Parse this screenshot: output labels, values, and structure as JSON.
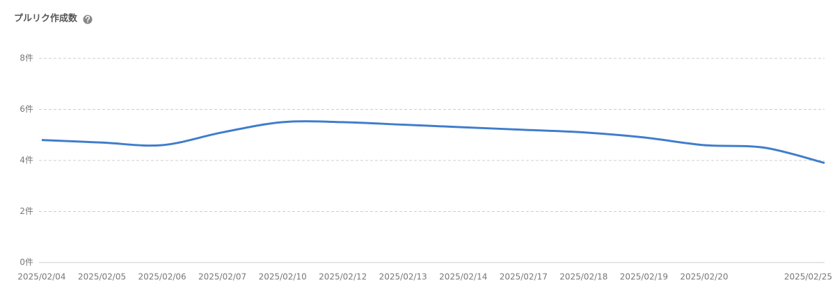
{
  "chart_data": {
    "type": "line",
    "title": "プルリク作成数",
    "categories": [
      "2025/02/04",
      "2025/02/05",
      "2025/02/06",
      "2025/02/07",
      "2025/02/10",
      "2025/02/12",
      "2025/02/13",
      "2025/02/14",
      "2025/02/17",
      "2025/02/18",
      "2025/02/19",
      "2025/02/20",
      null,
      "2025/02/25"
    ],
    "series": [
      {
        "name": "プルリク作成数",
        "color": "#3f7dcc",
        "values": [
          4.8,
          4.7,
          4.6,
          5.1,
          5.5,
          5.5,
          5.4,
          5.3,
          5.2,
          5.1,
          4.9,
          4.6,
          4.5,
          3.9
        ]
      }
    ],
    "ylim": [
      0,
      8
    ],
    "yticks": [
      {
        "value": 0,
        "label": "0件"
      },
      {
        "value": 2,
        "label": "2件"
      },
      {
        "value": 4,
        "label": "4件"
      },
      {
        "value": 6,
        "label": "6件"
      },
      {
        "value": 8,
        "label": "8件"
      }
    ],
    "grid": true
  }
}
